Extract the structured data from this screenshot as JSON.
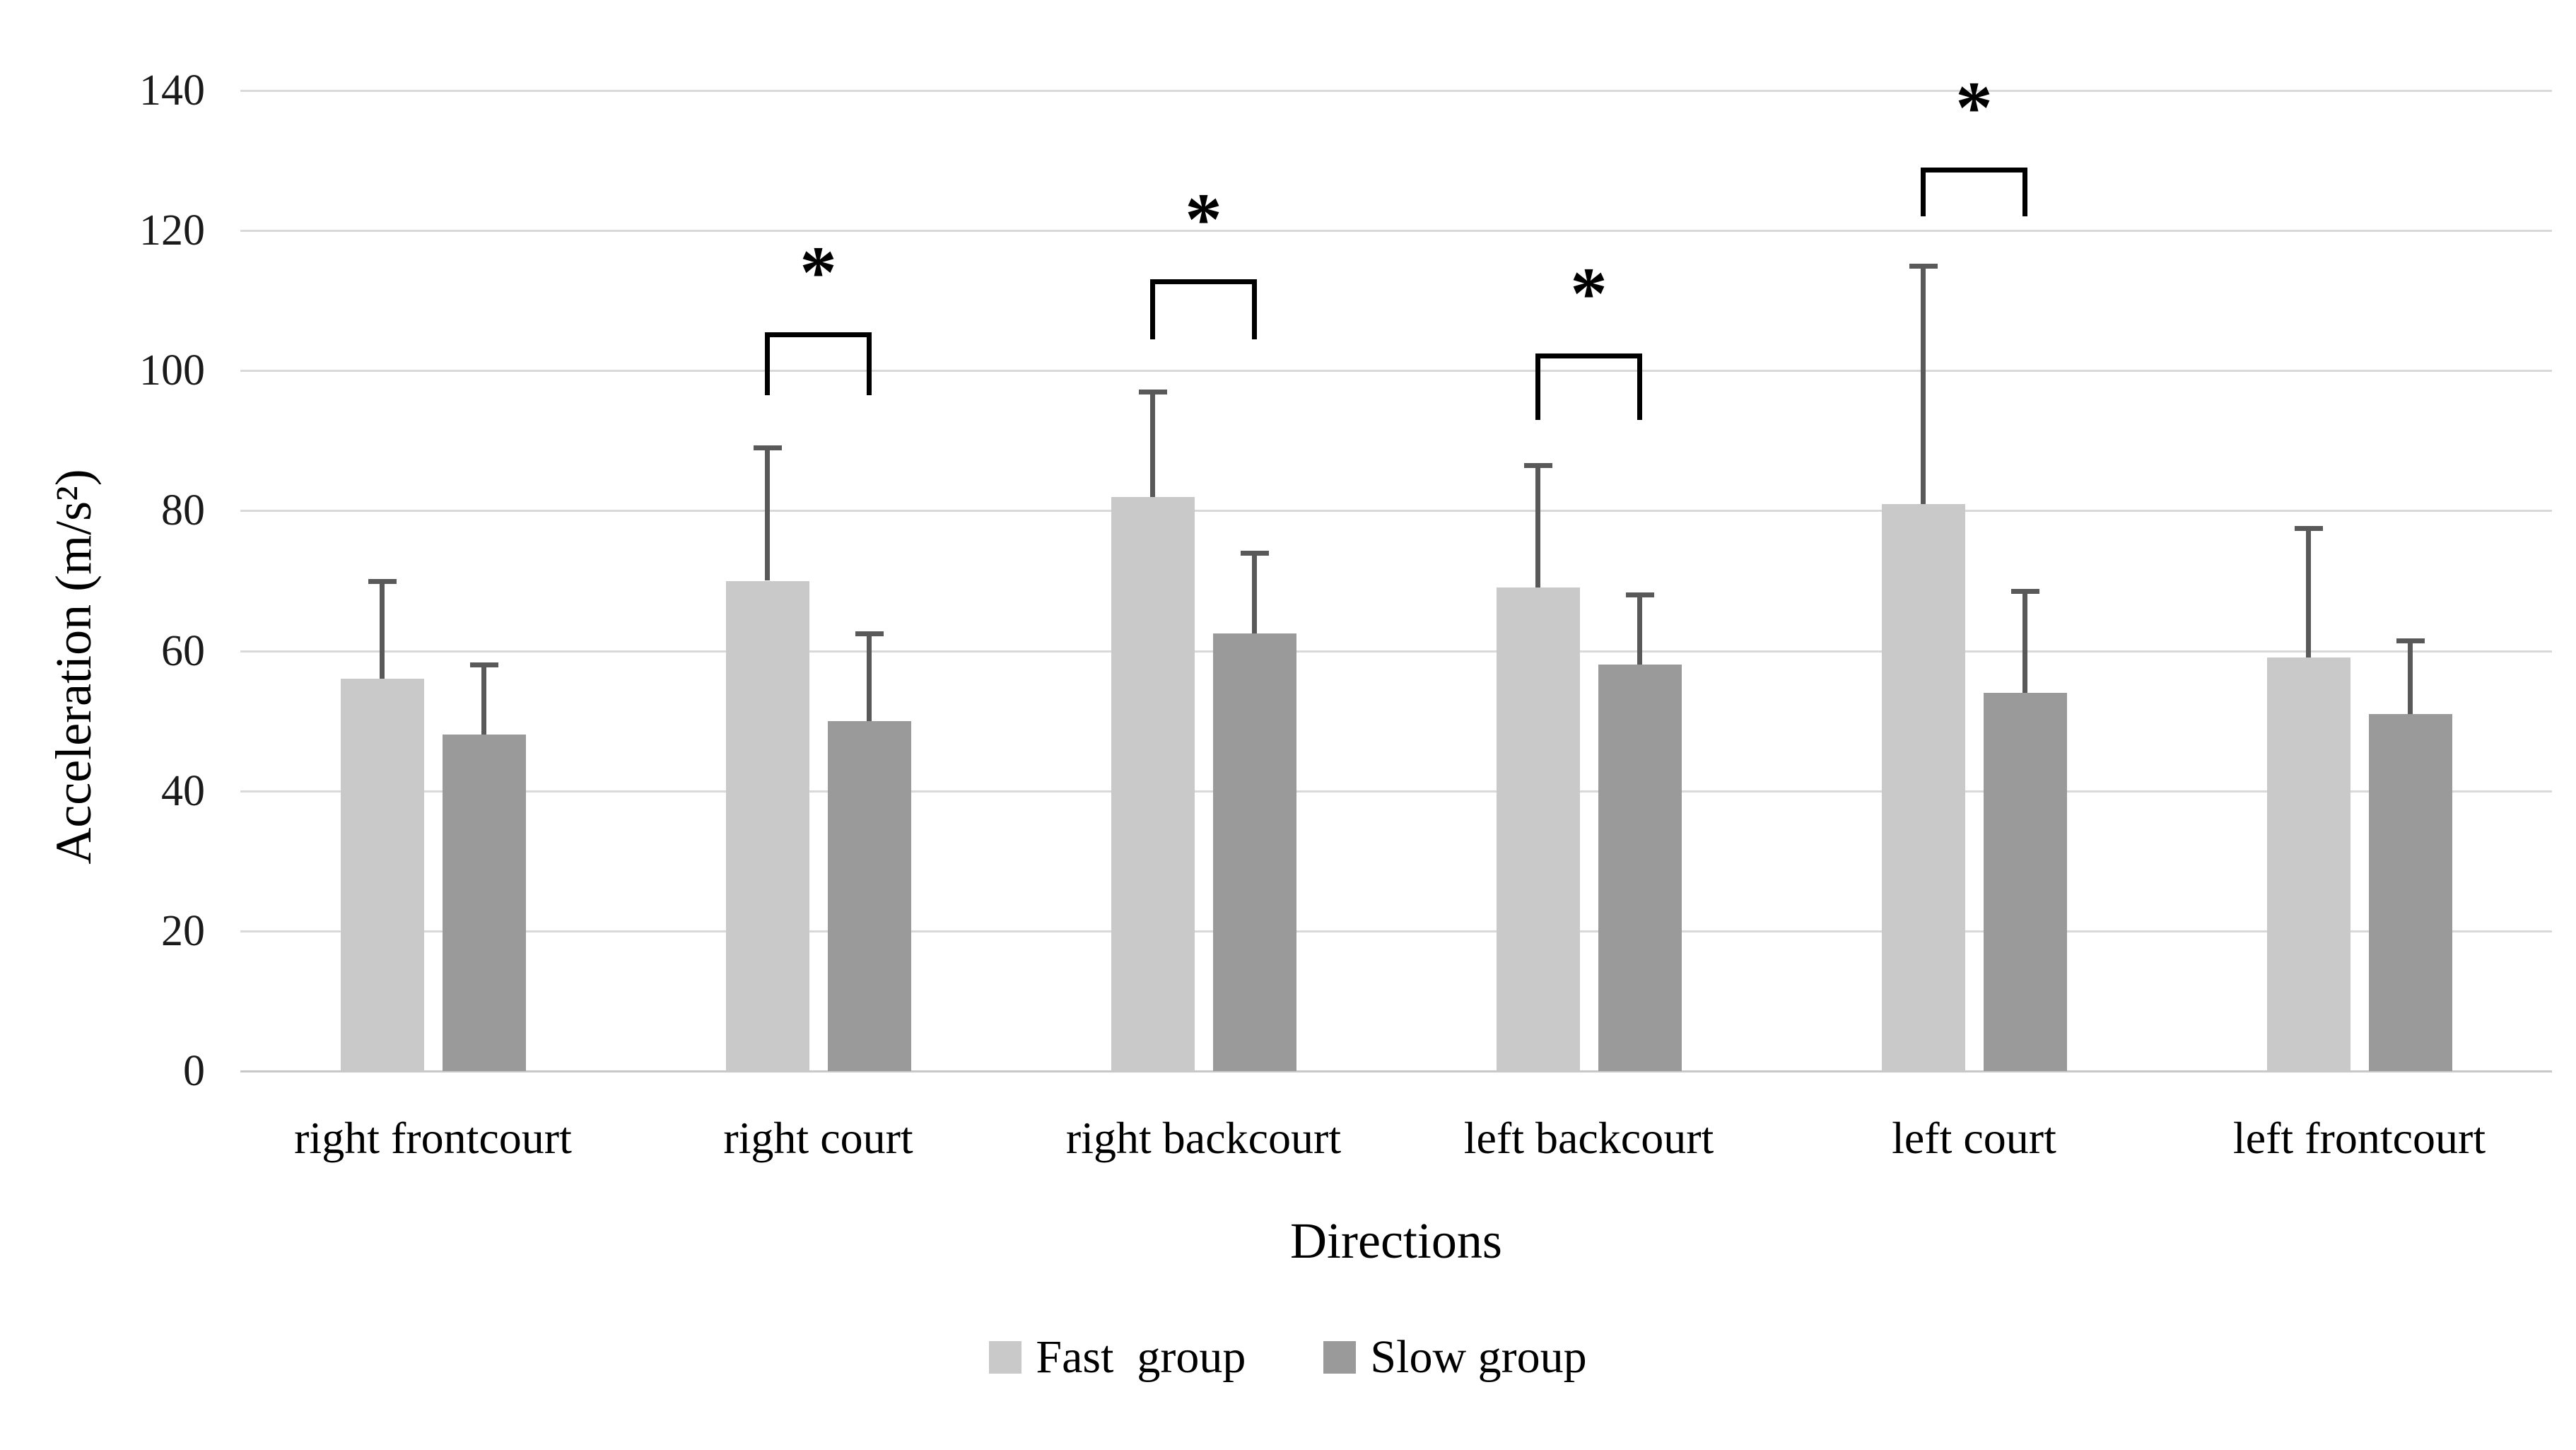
{
  "chart_data": {
    "type": "bar",
    "title": "",
    "xlabel": "Directions",
    "ylabel": "Acceleration (m/s²)",
    "ylim": [
      0,
      140
    ],
    "ytick_step": 20,
    "yticks": [
      0,
      20,
      40,
      60,
      80,
      100,
      120,
      140
    ],
    "grid": true,
    "gridline_color": "#d9d9d9",
    "baseline_color": "#c8c8c8",
    "error_bar_color": "#595959",
    "categories": [
      "right frontcourt",
      "right court",
      "right backcourt",
      "left backcourt",
      "left court",
      "left frontcourt"
    ],
    "series": [
      {
        "name": "Fast  group",
        "color": "#c9c9c9",
        "values": [
          56,
          70,
          82,
          69,
          81,
          59
        ],
        "error_plus": [
          14,
          19,
          15,
          17.5,
          34,
          18.5
        ]
      },
      {
        "name": "Slow group",
        "color": "#9a9a9a",
        "values": [
          48,
          50,
          62.5,
          58,
          54,
          51
        ],
        "error_plus": [
          10,
          12.5,
          11.5,
          10,
          14.5,
          10.5
        ]
      }
    ],
    "significance": [
      {
        "category": "right court",
        "label": "*",
        "bracket_top": 105.5,
        "bracket_leg_bottom": 96.5
      },
      {
        "category": "right backcourt",
        "label": "*",
        "bracket_top": 113,
        "bracket_leg_bottom": 104.5
      },
      {
        "category": "left backcourt",
        "label": "*",
        "bracket_top": 102.5,
        "bracket_leg_bottom": 93
      },
      {
        "category": "left court",
        "label": "*",
        "bracket_top": 129,
        "bracket_leg_bottom": 122
      }
    ],
    "legend": {
      "position": "bottom",
      "entries": [
        "Fast  group",
        "Slow group"
      ]
    }
  }
}
